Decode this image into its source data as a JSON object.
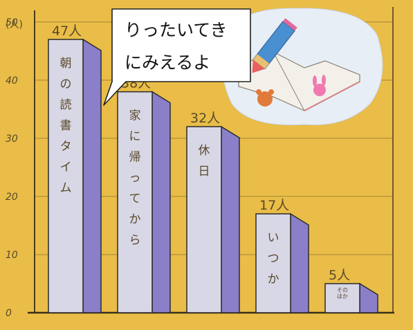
{
  "chart_data": {
    "type": "bar",
    "unit_label": "(人)",
    "yticks": [
      0,
      10,
      20,
      30,
      40,
      50
    ],
    "ylim": [
      0,
      52
    ],
    "categories": [
      "朝の読書タイム",
      "家に帰ってから",
      "休日",
      "いつか",
      "そのほか"
    ],
    "values": [
      47,
      38,
      32,
      17,
      5
    ],
    "data_labels": [
      "47人",
      "38人",
      "32人",
      "17人",
      "5人"
    ],
    "grid": true
  },
  "callout": {
    "line1": "りったいてき",
    "line2": "にみえるよ"
  },
  "illustration": {
    "icon": "book-and-pencil-icon"
  },
  "colors": {
    "background": "#e9bd47",
    "bar_front": "#d8d7e6",
    "bar_side": "#8b7fc9",
    "bar_top": "#c9c6e0",
    "outline": "#2b2b2b",
    "grid": "#6b5a2e"
  }
}
